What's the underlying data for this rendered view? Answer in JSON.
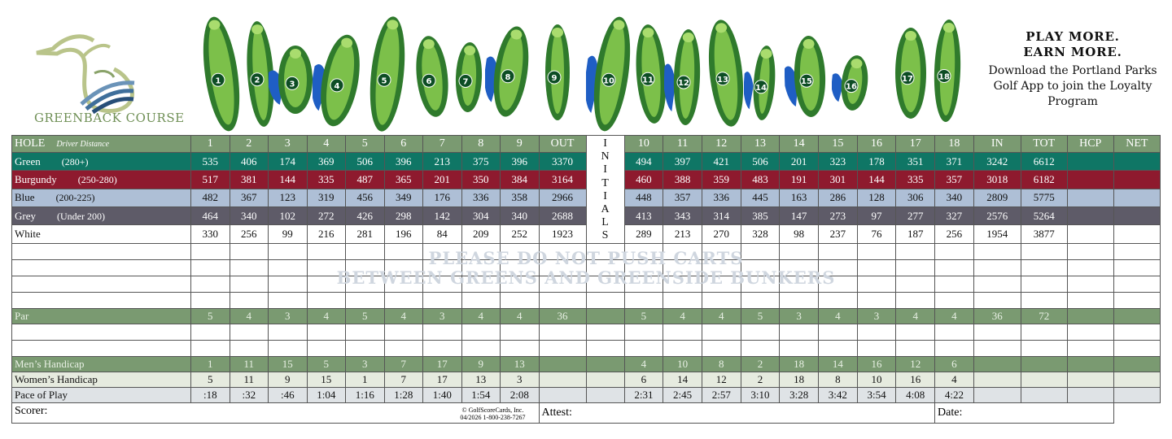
{
  "course_name": "GREENBACK COURSE",
  "promo": {
    "line1": "PLAY MORE.",
    "line2": "EARN MORE.",
    "body": "Download the Portland Parks Golf App to join the Loyalty Program"
  },
  "hole_numbers": [
    "1",
    "2",
    "3",
    "4",
    "5",
    "6",
    "7",
    "8",
    "9",
    "10",
    "11",
    "12",
    "13",
    "14",
    "15",
    "16",
    "17",
    "18"
  ],
  "header": {
    "hole_label": "HOLE",
    "driver_distance": "Driver Distance",
    "front": [
      "1",
      "2",
      "3",
      "4",
      "5",
      "6",
      "7",
      "8",
      "9"
    ],
    "out": "OUT",
    "back": [
      "10",
      "11",
      "12",
      "13",
      "14",
      "15",
      "16",
      "17",
      "18"
    ],
    "in": "IN",
    "tot": "TOT",
    "hcp": "HCP",
    "net": "NET"
  },
  "initials_letters": [
    "I",
    "N",
    "I",
    "T",
    "I",
    "A",
    "L",
    "S"
  ],
  "tees": [
    {
      "name": "Green",
      "range": "(280+)",
      "front": [
        "535",
        "406",
        "174",
        "369",
        "506",
        "396",
        "213",
        "375",
        "396"
      ],
      "out": "3370",
      "back": [
        "494",
        "397",
        "421",
        "506",
        "201",
        "323",
        "178",
        "351",
        "371"
      ],
      "in": "3242",
      "tot": "6612"
    },
    {
      "name": "Burgundy",
      "range": "(250-280)",
      "front": [
        "517",
        "381",
        "144",
        "335",
        "487",
        "365",
        "201",
        "350",
        "384"
      ],
      "out": "3164",
      "back": [
        "460",
        "388",
        "359",
        "483",
        "191",
        "301",
        "144",
        "335",
        "357"
      ],
      "in": "3018",
      "tot": "6182"
    },
    {
      "name": "Blue",
      "range": "(200-225)",
      "front": [
        "482",
        "367",
        "123",
        "319",
        "456",
        "349",
        "176",
        "336",
        "358"
      ],
      "out": "2966",
      "back": [
        "448",
        "357",
        "336",
        "445",
        "163",
        "286",
        "128",
        "306",
        "340"
      ],
      "in": "2809",
      "tot": "5775"
    },
    {
      "name": "Grey",
      "range": "(Under 200)",
      "front": [
        "464",
        "340",
        "102",
        "272",
        "426",
        "298",
        "142",
        "304",
        "340"
      ],
      "out": "2688",
      "back": [
        "413",
        "343",
        "314",
        "385",
        "147",
        "273",
        "97",
        "277",
        "327"
      ],
      "in": "2576",
      "tot": "5264"
    },
    {
      "name": "White",
      "range": "",
      "front": [
        "330",
        "256",
        "99",
        "216",
        "281",
        "196",
        "84",
        "209",
        "252"
      ],
      "out": "1923",
      "back": [
        "289",
        "213",
        "270",
        "328",
        "98",
        "237",
        "76",
        "187",
        "256"
      ],
      "in": "1954",
      "tot": "3877"
    }
  ],
  "notice": {
    "line1": "PLEASE DO NOT PUSH CARTS",
    "line2": "BETWEEN GREENS AND GREENSIDE BUNKERS"
  },
  "par": {
    "label": "Par",
    "front": [
      "5",
      "4",
      "3",
      "4",
      "5",
      "4",
      "3",
      "4",
      "4"
    ],
    "out": "36",
    "back": [
      "5",
      "4",
      "4",
      "5",
      "3",
      "4",
      "3",
      "4",
      "4"
    ],
    "in": "36",
    "tot": "72"
  },
  "mens_handicap": {
    "label": "Men’s Handicap",
    "front": [
      "1",
      "11",
      "15",
      "5",
      "3",
      "7",
      "17",
      "9",
      "13"
    ],
    "back": [
      "4",
      "10",
      "8",
      "2",
      "18",
      "14",
      "16",
      "12",
      "6"
    ]
  },
  "womens_handicap": {
    "label": "Women’s Handicap",
    "front": [
      "5",
      "11",
      "9",
      "15",
      "1",
      "7",
      "17",
      "13",
      "3"
    ],
    "back": [
      "6",
      "14",
      "12",
      "2",
      "18",
      "8",
      "10",
      "16",
      "4"
    ]
  },
  "pace": {
    "label": "Pace of Play",
    "front": [
      ":18",
      ":32",
      ":46",
      "1:04",
      "1:16",
      "1:28",
      "1:40",
      "1:54",
      "2:08"
    ],
    "back": [
      "2:31",
      "2:45",
      "2:57",
      "3:10",
      "3:28",
      "3:42",
      "3:54",
      "4:08",
      "4:22"
    ]
  },
  "footer": {
    "scorer": "Scorer:",
    "copyright1": "© GolfScoreCards, Inc.",
    "copyright2": "04/2026   1-800-238-7267",
    "attest": "Attest:",
    "date": "Date:"
  },
  "colors": {
    "green": "#0f7665",
    "burgundy": "#8e1a2e",
    "blue": "#aebfd6",
    "grey": "#5e5b68",
    "header": "#7a9a71"
  }
}
